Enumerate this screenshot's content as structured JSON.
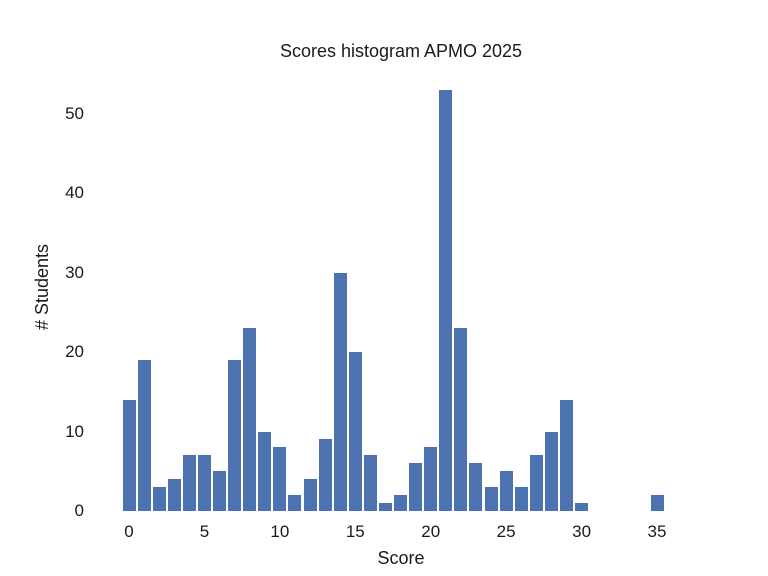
{
  "chart_data": {
    "type": "bar",
    "title": "Scores histogram APMO 2025",
    "xlabel": "Score",
    "ylabel": "# Students",
    "x": [
      0,
      1,
      2,
      3,
      4,
      5,
      6,
      7,
      8,
      9,
      10,
      11,
      12,
      13,
      14,
      15,
      16,
      17,
      18,
      19,
      20,
      21,
      22,
      23,
      24,
      25,
      26,
      27,
      28,
      29,
      30,
      31,
      32,
      33,
      34,
      35
    ],
    "values": [
      14,
      19,
      3,
      4,
      7,
      7,
      5,
      19,
      23,
      10,
      8,
      2,
      4,
      9,
      30,
      20,
      7,
      1,
      2,
      6,
      8,
      53,
      23,
      6,
      3,
      5,
      3,
      7,
      10,
      14,
      1,
      0,
      0,
      0,
      0,
      2
    ],
    "xticks": [
      0,
      5,
      10,
      15,
      20,
      25,
      30,
      35
    ],
    "yticks": [
      0,
      10,
      20,
      30,
      40,
      50
    ],
    "xlim": [
      -2.2,
      37.2
    ],
    "ylim": [
      0,
      55.65
    ],
    "grid": false,
    "legend": "none",
    "bar_color": "#4C72B0",
    "text_color": "#1a1a1a",
    "background_color": "#ffffff"
  }
}
